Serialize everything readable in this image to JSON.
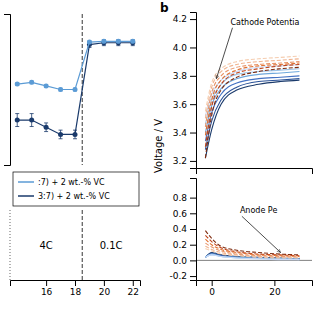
{
  "chart_data": [
    {
      "type": "line",
      "x": [
        14,
        15,
        16,
        17,
        18,
        19,
        20,
        21,
        22
      ],
      "xlim": [
        13.5,
        22.5
      ],
      "xticks": [
        16,
        18,
        20,
        22
      ],
      "ylim": [
        0.6,
        1.02
      ],
      "tick_labels": "x",
      "marker": "circle",
      "legend": "bottom",
      "series": [
        {
          "name": "3:7) + 2 wt.-% VC",
          "color": "#1a3a6b",
          "values": [
            0.725,
            0.725,
            0.705,
            0.685,
            0.685,
            0.935,
            0.94,
            0.94,
            0.94
          ],
          "errors": [
            0.018,
            0.018,
            0.012,
            0.012,
            0.012,
            0.008,
            0.008,
            0.008,
            0.008
          ]
        },
        {
          "name": ":7) + 2 wt.-% VC",
          "color": "#5b9bd5",
          "values": [
            0.825,
            0.83,
            0.82,
            0.81,
            0.81,
            0.942,
            0.944,
            0.944,
            0.944
          ],
          "errors": [
            0.004,
            0.004,
            0.004,
            0.004,
            0.004,
            0.004,
            0.004,
            0.004,
            0.004
          ]
        }
      ],
      "reference_lines": [
        {
          "x": 18.5,
          "line_style": "dashed"
        },
        {
          "x": 13.5,
          "line_style": "dotted"
        }
      ],
      "annotations": [
        {
          "text": "4C",
          "x": 16
        },
        {
          "text": "0.1C",
          "x": 20.5
        }
      ]
    },
    {
      "type": "line",
      "title": "b",
      "y_label": "Voltage / V",
      "x": [
        -2,
        0,
        3,
        8,
        15,
        22,
        28
      ],
      "xlim": [
        -5,
        32
      ],
      "ylim": [
        3.15,
        4.25
      ],
      "yticks": [
        3.2,
        3.4,
        3.6,
        3.8,
        {
          "value": 4.0,
          "label": "4.0"
        },
        4.2
      ],
      "tick_labels": "y",
      "series": [
        {
          "color": "#1a3a6b",
          "line_style": "solid",
          "values": [
            3.22,
            3.42,
            3.6,
            3.7,
            3.74,
            3.76,
            3.77
          ]
        },
        {
          "color": "#2a5298",
          "line_style": "solid",
          "values": [
            3.28,
            3.48,
            3.63,
            3.72,
            3.76,
            3.77,
            3.78
          ]
        },
        {
          "color": "#4472c4",
          "line_style": "solid",
          "values": [
            3.34,
            3.54,
            3.67,
            3.75,
            3.78,
            3.79,
            3.8
          ]
        },
        {
          "color": "#6fa8dc",
          "line_style": "solid",
          "values": [
            3.4,
            3.59,
            3.71,
            3.78,
            3.81,
            3.82,
            3.83
          ]
        },
        {
          "color": "#9fc5e8",
          "line_style": "solid",
          "values": [
            3.46,
            3.63,
            3.74,
            3.81,
            3.83,
            3.84,
            3.85
          ]
        },
        {
          "color": "#c9daf8",
          "line_style": "solid",
          "values": [
            3.52,
            3.67,
            3.77,
            3.83,
            3.86,
            3.87,
            3.88
          ]
        },
        {
          "color": "#7d2a0e",
          "line_style": "dashed",
          "values": [
            3.22,
            3.52,
            3.7,
            3.79,
            3.83,
            3.85,
            3.86
          ]
        },
        {
          "color": "#c0441a",
          "line_style": "dashed",
          "values": [
            3.3,
            3.58,
            3.74,
            3.82,
            3.85,
            3.87,
            3.88
          ]
        },
        {
          "color": "#e07030",
          "line_style": "dashed",
          "values": [
            3.38,
            3.63,
            3.77,
            3.84,
            3.87,
            3.88,
            3.89
          ]
        },
        {
          "color": "#e8956a",
          "line_style": "dashed",
          "values": [
            3.44,
            3.68,
            3.8,
            3.86,
            3.88,
            3.89,
            3.9
          ]
        },
        {
          "color": "#f0b38f",
          "line_style": "dashed",
          "values": [
            3.5,
            3.72,
            3.83,
            3.88,
            3.9,
            3.91,
            3.92
          ]
        },
        {
          "color": "#f5cdb0",
          "line_style": "dashed",
          "values": [
            3.55,
            3.75,
            3.85,
            3.9,
            3.92,
            3.93,
            3.94
          ]
        }
      ],
      "annotations": [
        {
          "text": "Cathode Potentia",
          "x": 1.5,
          "y": 3.78,
          "text_x": 6,
          "text_y": 4.16
        }
      ]
    },
    {
      "type": "line",
      "x": [
        -2,
        0,
        3,
        8,
        15,
        22,
        28
      ],
      "xlim": [
        -5,
        32
      ],
      "xticks": [
        0,
        20
      ],
      "ylim": [
        -0.25,
        1.05
      ],
      "yticks": [
        -0.2,
        {
          "value": 0,
          "label": "0.0"
        },
        0.2,
        0.4,
        0.6,
        0.8
      ],
      "series": [
        {
          "color": "#1a3a6b",
          "line_style": "solid",
          "values": [
            0.04,
            0.1,
            0.07,
            0.05,
            0.04,
            0.03,
            0.02
          ]
        },
        {
          "color": "#2a5298",
          "line_style": "solid",
          "values": [
            0.04,
            0.09,
            0.06,
            0.04,
            0.03,
            0.02,
            0.02
          ]
        },
        {
          "color": "#4472c4",
          "line_style": "solid",
          "values": [
            0.04,
            0.08,
            0.06,
            0.04,
            0.03,
            0.02,
            0.02
          ]
        },
        {
          "color": "#6fa8dc",
          "line_style": "solid",
          "values": [
            0.04,
            0.08,
            0.05,
            0.04,
            0.03,
            0.02,
            0.02
          ]
        },
        {
          "color": "#9fc5e8",
          "line_style": "solid",
          "values": [
            0.04,
            0.07,
            0.05,
            0.03,
            0.02,
            0.02,
            0.01
          ]
        },
        {
          "color": "#c9daf8",
          "line_style": "solid",
          "values": [
            0.04,
            0.07,
            0.05,
            0.03,
            0.02,
            0.01,
            0.01
          ]
        },
        {
          "color": "#7d2a0e",
          "line_style": "dashed",
          "values": [
            0.38,
            0.28,
            0.18,
            0.13,
            0.1,
            0.08,
            0.07
          ]
        },
        {
          "color": "#c0441a",
          "line_style": "dashed",
          "values": [
            0.32,
            0.24,
            0.16,
            0.11,
            0.08,
            0.07,
            0.06
          ]
        },
        {
          "color": "#e07030",
          "line_style": "dashed",
          "values": [
            0.27,
            0.2,
            0.14,
            0.1,
            0.07,
            0.06,
            0.05
          ]
        },
        {
          "color": "#e8956a",
          "line_style": "dashed",
          "values": [
            0.22,
            0.17,
            0.12,
            0.08,
            0.06,
            0.05,
            0.04
          ]
        },
        {
          "color": "#f0b38f",
          "line_style": "dashed",
          "values": [
            0.18,
            0.14,
            0.1,
            0.07,
            0.05,
            0.04,
            0.04
          ]
        },
        {
          "color": "#f5cdb0",
          "line_style": "dashed",
          "values": [
            0.15,
            0.12,
            0.08,
            0.06,
            0.04,
            0.03,
            0.03
          ]
        }
      ],
      "reference_lines": [
        {
          "y": 0
        }
      ],
      "annotations": [
        {
          "text": "Anode Pe",
          "x": 22,
          "y": 0.1,
          "text_x": 9,
          "text_y": 0.6
        }
      ]
    }
  ]
}
